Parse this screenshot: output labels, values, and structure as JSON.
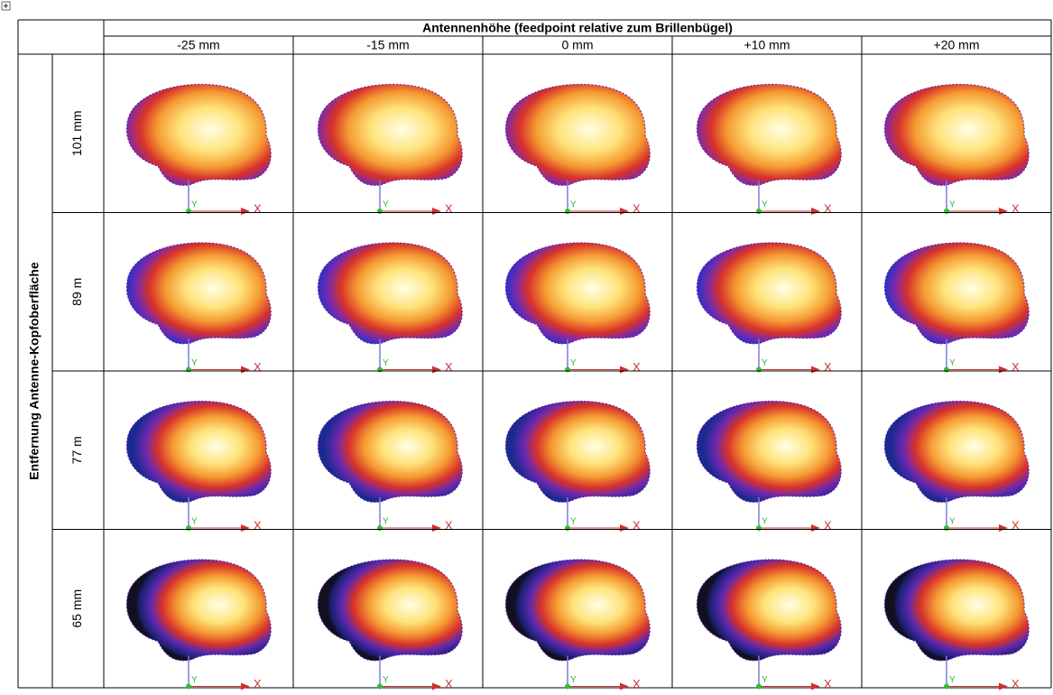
{
  "header": {
    "title": "Antennenhöhe (feedpoint relative zum Brillenbügel)",
    "columns": [
      "-25 mm",
      "-15 mm",
      "0 mm",
      "+10 mm",
      "+20 mm"
    ]
  },
  "row_header": "Entfernung Antenne-Kopfoberfläche",
  "rows": [
    "101 mm",
    "89 m",
    "77 m",
    "65 mm"
  ],
  "axis_labels": {
    "x": "X",
    "y": "Y"
  }
}
